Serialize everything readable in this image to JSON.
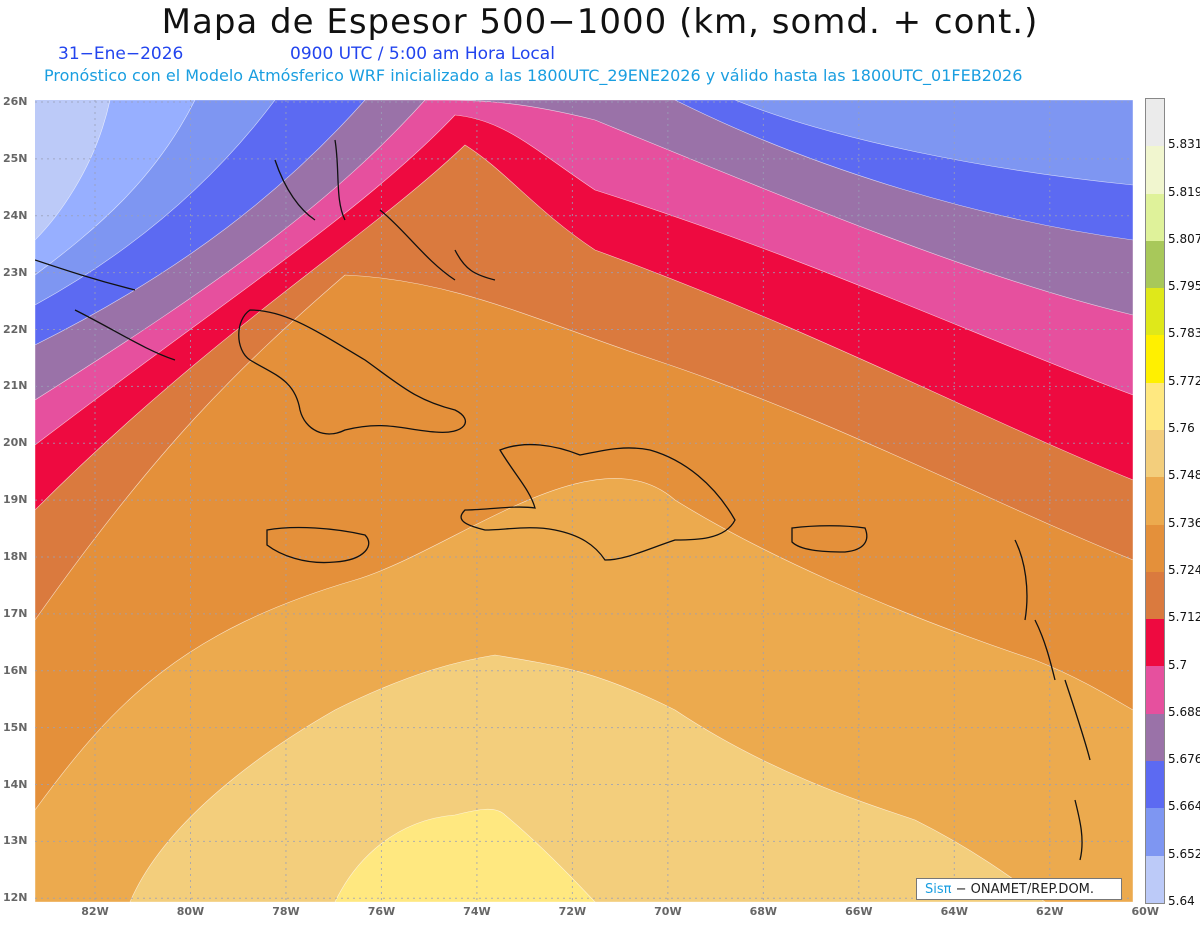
{
  "header": {
    "title": "Mapa de Espesor 500−1000 (km, somd. + cont.)",
    "date": "31−Ene−2026",
    "time": "0900 UTC / 5:00 am Hora Local",
    "info": "Pronóstico con el Modelo Atmósferico WRF inicializado a las 1800UTC_29ENE2026 y válido hasta las  1800UTC_01FEB2026"
  },
  "axes": {
    "lat_labels": [
      "26N",
      "25N",
      "24N",
      "23N",
      "22N",
      "21N",
      "20N",
      "19N",
      "18N",
      "17N",
      "16N",
      "15N",
      "14N",
      "13N",
      "12N"
    ],
    "lon_labels": [
      "82W",
      "80W",
      "78W",
      "76W",
      "74W",
      "72W",
      "70W",
      "68W",
      "66W",
      "64W",
      "62W",
      "60W"
    ]
  },
  "colorbar": {
    "labels": [
      "5.831",
      "5.819",
      "5.807",
      "5.795",
      "5.783",
      "5.772",
      "5.76",
      "5.748",
      "5.736",
      "5.724",
      "5.712",
      "5.7",
      "5.688",
      "5.676",
      "5.664",
      "5.652",
      "5.64"
    ],
    "colors": [
      "#ebebeb",
      "#f1f6cf",
      "#dff29a",
      "#a8c85a",
      "#dfe81a",
      "#fff000",
      "#ffe880",
      "#f3ce7c",
      "#ecaa4e",
      "#e4903a",
      "#da7a3e",
      "#ee0a40",
      "#e6509e",
      "#9a72a8",
      "#5c6af2",
      "#7e96f2",
      "#bccaf8"
    ]
  },
  "map": {
    "bands": [
      "#bccaf8",
      "#97afff",
      "#7e96f2",
      "#5c6af2",
      "#9a72a8",
      "#e6509e",
      "#ee0a40",
      "#da7a3e",
      "#e4903a",
      "#ecaa4e",
      "#f3ce7c",
      "#ffe880",
      "#fff000"
    ]
  },
  "credit": {
    "brand": "Sisπ",
    "text": "− ONAMET/REP.DOM."
  }
}
